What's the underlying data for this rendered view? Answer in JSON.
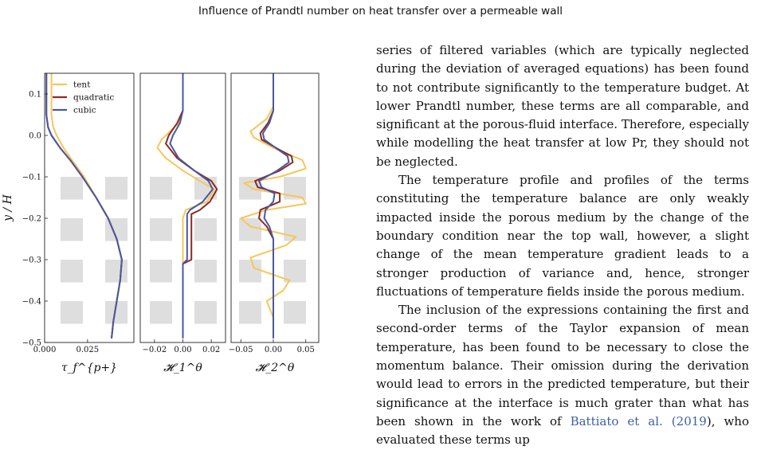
{
  "header": {
    "title": "Influence of Prandtl number on heat transfer over a permeable wall"
  },
  "figure": {
    "y_axis_label": "y / H",
    "legend": [
      "tent",
      "quadratic",
      "cubic"
    ],
    "colors": {
      "tent": "#f6c65b",
      "quadratic": "#8b2b23",
      "cubic": "#4a57a0",
      "cubes": "#dedede"
    },
    "panel_labels": [
      "τ_f^{p+}",
      "𝓗_1^θ",
      "𝓗_2^θ"
    ]
  },
  "chart_data": [
    {
      "type": "line",
      "title": "",
      "xlabel": "τ_f^{p+}",
      "ylabel": "y / H",
      "xlim": [
        0.0,
        0.052
      ],
      "ylim": [
        -0.5,
        0.15
      ],
      "x_ticks": [
        "0.000",
        "0.025"
      ],
      "y_ticks": [
        "0.1",
        "0.0",
        "−0.1",
        "−0.2",
        "−0.3",
        "−0.4",
        "−0.5"
      ],
      "series": [
        {
          "name": "tent",
          "points": [
            [
              0.004,
              0.15
            ],
            [
              0.004,
              0.1
            ],
            [
              0.004,
              0.05
            ],
            [
              0.005,
              0.02
            ],
            [
              0.007,
              0.0
            ],
            [
              0.011,
              -0.03
            ],
            [
              0.016,
              -0.06
            ],
            [
              0.023,
              -0.1
            ],
            [
              0.03,
              -0.15
            ],
            [
              0.037,
              -0.2
            ],
            [
              0.042,
              -0.25
            ],
            [
              0.045,
              -0.3
            ],
            [
              0.044,
              -0.35
            ],
            [
              0.042,
              -0.4
            ],
            [
              0.04,
              -0.45
            ],
            [
              0.039,
              -0.49
            ]
          ]
        },
        {
          "name": "quadratic",
          "points": [
            [
              0.001,
              0.15
            ],
            [
              0.001,
              0.1
            ],
            [
              0.001,
              0.05
            ],
            [
              0.002,
              0.02
            ],
            [
              0.004,
              0.0
            ],
            [
              0.009,
              -0.03
            ],
            [
              0.015,
              -0.06
            ],
            [
              0.022,
              -0.1
            ],
            [
              0.03,
              -0.15
            ],
            [
              0.037,
              -0.2
            ],
            [
              0.042,
              -0.25
            ],
            [
              0.045,
              -0.3
            ],
            [
              0.044,
              -0.35
            ],
            [
              0.042,
              -0.4
            ],
            [
              0.04,
              -0.45
            ],
            [
              0.039,
              -0.49
            ]
          ]
        },
        {
          "name": "cubic",
          "points": [
            [
              0.001,
              0.15
            ],
            [
              0.001,
              0.1
            ],
            [
              0.001,
              0.05
            ],
            [
              0.002,
              0.02
            ],
            [
              0.004,
              0.0
            ],
            [
              0.009,
              -0.03
            ],
            [
              0.015,
              -0.06
            ],
            [
              0.022,
              -0.1
            ],
            [
              0.03,
              -0.15
            ],
            [
              0.037,
              -0.2
            ],
            [
              0.042,
              -0.25
            ],
            [
              0.045,
              -0.3
            ],
            [
              0.044,
              -0.35
            ],
            [
              0.042,
              -0.4
            ],
            [
              0.04,
              -0.45
            ],
            [
              0.039,
              -0.49
            ]
          ]
        }
      ]
    },
    {
      "type": "line",
      "title": "",
      "xlabel": "𝓗_1^θ",
      "ylabel": "",
      "xlim": [
        -0.03,
        0.03
      ],
      "ylim": [
        -0.5,
        0.15
      ],
      "x_ticks": [
        "−0.02",
        "0.00",
        "0.02"
      ],
      "series": [
        {
          "name": "tent",
          "points": [
            [
              0.0,
              0.15
            ],
            [
              0.0,
              0.06
            ],
            [
              -0.003,
              0.03
            ],
            [
              -0.015,
              -0.01
            ],
            [
              -0.018,
              -0.03
            ],
            [
              -0.012,
              -0.055
            ],
            [
              0.0,
              -0.085
            ],
            [
              0.012,
              -0.11
            ],
            [
              0.022,
              -0.13
            ],
            [
              0.017,
              -0.16
            ],
            [
              0.002,
              -0.18
            ],
            [
              0.0,
              -0.2
            ],
            [
              0.0,
              -0.3
            ],
            [
              0.0,
              -0.49
            ]
          ]
        },
        {
          "name": "quadratic",
          "points": [
            [
              0.0,
              0.15
            ],
            [
              0.0,
              0.06
            ],
            [
              -0.004,
              0.03
            ],
            [
              -0.01,
              0.0
            ],
            [
              -0.012,
              -0.02
            ],
            [
              -0.004,
              -0.055
            ],
            [
              0.008,
              -0.085
            ],
            [
              0.02,
              -0.11
            ],
            [
              0.024,
              -0.13
            ],
            [
              0.019,
              -0.16
            ],
            [
              0.012,
              -0.18
            ],
            [
              0.006,
              -0.19
            ],
            [
              0.006,
              -0.25
            ],
            [
              0.006,
              -0.3
            ],
            [
              0.0,
              -0.31
            ],
            [
              0.0,
              -0.49
            ]
          ]
        },
        {
          "name": "cubic",
          "points": [
            [
              0.0,
              0.15
            ],
            [
              0.0,
              0.06
            ],
            [
              -0.002,
              0.03
            ],
            [
              -0.007,
              0.0
            ],
            [
              -0.009,
              -0.02
            ],
            [
              -0.003,
              -0.055
            ],
            [
              0.008,
              -0.085
            ],
            [
              0.018,
              -0.11
            ],
            [
              0.021,
              -0.13
            ],
            [
              0.014,
              -0.16
            ],
            [
              0.005,
              -0.18
            ],
            [
              0.003,
              -0.19
            ],
            [
              0.003,
              -0.25
            ],
            [
              0.003,
              -0.3
            ],
            [
              0.0,
              -0.31
            ],
            [
              0.0,
              -0.49
            ]
          ]
        }
      ]
    },
    {
      "type": "line",
      "title": "",
      "xlabel": "𝓗_2^θ",
      "ylabel": "",
      "xlim": [
        -0.065,
        0.07
      ],
      "ylim": [
        -0.5,
        0.15
      ],
      "x_ticks": [
        "−0.05",
        "0.00",
        "0.05"
      ],
      "series": [
        {
          "name": "tent",
          "points": [
            [
              0.0,
              0.15
            ],
            [
              0.0,
              0.07
            ],
            [
              -0.01,
              0.04
            ],
            [
              -0.035,
              0.01
            ],
            [
              -0.03,
              -0.005
            ],
            [
              0.0,
              -0.03
            ],
            [
              0.045,
              -0.06
            ],
            [
              0.05,
              -0.08
            ],
            [
              0.01,
              -0.1
            ],
            [
              -0.045,
              -0.115
            ],
            [
              -0.03,
              -0.13
            ],
            [
              0.045,
              -0.15
            ],
            [
              0.05,
              -0.165
            ],
            [
              -0.01,
              -0.18
            ],
            [
              -0.05,
              -0.2
            ],
            [
              -0.035,
              -0.22
            ],
            [
              0.035,
              -0.245
            ],
            [
              0.02,
              -0.265
            ],
            [
              -0.035,
              -0.295
            ],
            [
              -0.03,
              -0.32
            ],
            [
              0.025,
              -0.35
            ],
            [
              0.015,
              -0.375
            ],
            [
              -0.01,
              -0.4
            ],
            [
              -0.005,
              -0.42
            ],
            [
              0.0,
              -0.44
            ],
            [
              0.0,
              -0.49
            ]
          ]
        },
        {
          "name": "quadratic",
          "points": [
            [
              0.0,
              0.15
            ],
            [
              0.0,
              0.06
            ],
            [
              -0.008,
              0.03
            ],
            [
              -0.02,
              0.005
            ],
            [
              -0.018,
              -0.01
            ],
            [
              0.01,
              -0.035
            ],
            [
              0.028,
              -0.05
            ],
            [
              0.03,
              -0.065
            ],
            [
              0.01,
              -0.085
            ],
            [
              -0.028,
              -0.11
            ],
            [
              -0.024,
              -0.125
            ],
            [
              0.01,
              -0.14
            ],
            [
              0.01,
              -0.16
            ],
            [
              -0.02,
              -0.18
            ],
            [
              -0.022,
              -0.2
            ],
            [
              -0.01,
              -0.22
            ],
            [
              0.0,
              -0.25
            ],
            [
              0.0,
              -0.49
            ]
          ]
        },
        {
          "name": "cubic",
          "points": [
            [
              0.0,
              0.15
            ],
            [
              0.0,
              0.06
            ],
            [
              -0.006,
              0.03
            ],
            [
              -0.016,
              0.005
            ],
            [
              -0.014,
              -0.01
            ],
            [
              0.008,
              -0.035
            ],
            [
              0.022,
              -0.05
            ],
            [
              0.024,
              -0.065
            ],
            [
              0.006,
              -0.085
            ],
            [
              -0.022,
              -0.11
            ],
            [
              -0.018,
              -0.125
            ],
            [
              0.002,
              -0.14
            ],
            [
              0.0,
              -0.16
            ],
            [
              -0.012,
              -0.18
            ],
            [
              -0.014,
              -0.2
            ],
            [
              -0.006,
              -0.22
            ],
            [
              0.0,
              -0.25
            ],
            [
              0.0,
              -0.49
            ]
          ]
        }
      ]
    }
  ],
  "body": {
    "p1": "series of filtered variables (which are typically neglected during the deviation of averaged equations) has been found to not contribute significantly to the temperature budget. At lower Prandtl number, these terms are all comparable, and significant at the porous-fluid interface. Therefore, especially while modelling the heat transfer at low Pr, they should not be neglected.",
    "p2": "The temperature profile and profiles of the terms constituting the temperature balance are only weakly impacted inside the porous medium by the change of the boundary condition near the top wall, however, a slight change of the mean temperature gradient leads to a stronger production of variance and, hence, stronger fluctuations of temperature fields inside the porous medium.",
    "p3_a": "The inclusion of the expressions containing the first and second-order terms of the Taylor expansion of mean temperature, has been found to be necessary to close the momentum balance. Their omission during the derivation would lead to errors in the predicted temperature, but their significance at the interface is much grater than what has been shown in the work of ",
    "p3_cite_author": "Battiato et al.",
    "p3_cite_year": "2019",
    "p3_b": "), who evaluated these terms up"
  }
}
